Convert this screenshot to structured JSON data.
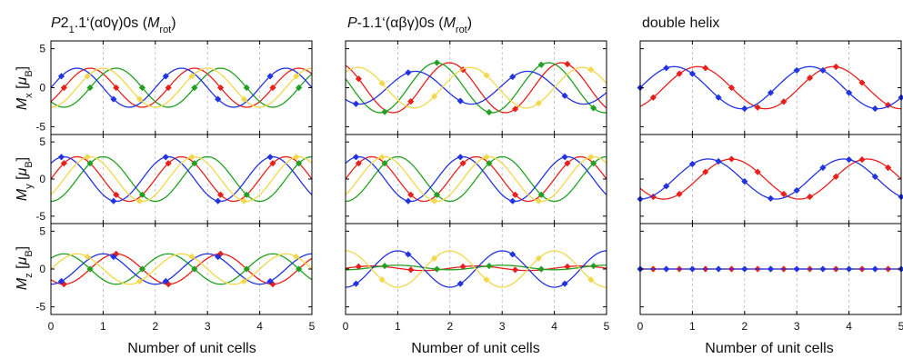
{
  "chart_data": {
    "type": "line",
    "description": "3 x 3 grid of magnetic moment components Mx, My, Mz vs number of unit cells for three structures",
    "colors": {
      "red": "#e8201c",
      "green": "#22a022",
      "blue": "#2233e0",
      "yellow": "#f2d84a"
    },
    "columns": [
      {
        "title_italic": "P",
        "title_main": "2",
        "title_sub": "1",
        "title_rest": ".1‘(α0γ)0s (",
        "title_mrot": "M",
        "title_rot_sub": "rot",
        "title_close": ")"
      },
      {
        "title_italic": "P",
        "title_main": "-1.1‘(αβγ)0s (",
        "title_sub": "",
        "title_rest": "",
        "title_mrot": "M",
        "title_rot_sub": "rot",
        "title_close": ")"
      },
      {
        "title_italic": "",
        "title_main": "double helix",
        "title_sub": "",
        "title_rest": "",
        "title_mrot": "",
        "title_rot_sub": "",
        "title_close": ""
      }
    ],
    "row_labels": [
      {
        "m": "M",
        "sub": "x",
        "unit_open": " [",
        "mu": "μ",
        "unit_sub": "B",
        "unit_close": "]"
      },
      {
        "m": "M",
        "sub": "y",
        "unit_open": " [",
        "mu": "μ",
        "unit_sub": "B",
        "unit_close": "]"
      },
      {
        "m": "M",
        "sub": "z",
        "unit_open": " [",
        "mu": "μ",
        "unit_sub": "B",
        "unit_close": "]"
      }
    ],
    "xlabel": "Number of unit cells",
    "xlim": [
      0,
      5
    ],
    "ylim": [
      -6,
      6
    ],
    "x_ticks": [
      0,
      1,
      2,
      3,
      4,
      5
    ],
    "y_ticks": [
      5,
      0,
      -5
    ],
    "x_tick_labels": [
      "0",
      "1",
      "2",
      "3",
      "4",
      "5"
    ],
    "y_tick_labels": [
      "5",
      "0",
      "-5"
    ],
    "grid": "vertical dashed at integer x",
    "panels": [
      [
        {
          "series": [
            {
              "color": "red",
              "amp": 2.5,
              "period": 2,
              "phase": 0.25,
              "offset": 0,
              "marker_x0": 0.25,
              "marker_step": 1
            },
            {
              "color": "green",
              "amp": 2.5,
              "period": 2,
              "phase": 0.75,
              "offset": 0,
              "marker_x0": 0.75,
              "marker_step": 1
            },
            {
              "color": "blue",
              "amp": 2.5,
              "period": 2,
              "phase": 0.0,
              "offset": 0,
              "marker_x0": 0.2,
              "marker_step": 1
            },
            {
              "color": "yellow",
              "amp": 2.5,
              "period": 2,
              "phase": 0.5,
              "offset": 0,
              "marker_x0": 0.7,
              "marker_step": 1
            }
          ]
        },
        {
          "series": [
            {
              "color": "red",
              "amp": 3,
              "period": 2,
              "phase": 0.0,
              "offset": 0,
              "marker_x0": 0.25,
              "marker_step": 1
            },
            {
              "color": "green",
              "amp": 3,
              "period": 2,
              "phase": 0.5,
              "offset": 0,
              "marker_x0": 0.75,
              "marker_step": 1
            },
            {
              "color": "blue",
              "amp": 3,
              "period": 2,
              "phase": -0.25,
              "offset": 0,
              "marker_x0": 0.2,
              "marker_step": 1
            },
            {
              "color": "yellow",
              "amp": 3,
              "period": 2,
              "phase": 0.25,
              "offset": 0,
              "marker_x0": 0.7,
              "marker_step": 1
            }
          ]
        },
        {
          "series": [
            {
              "color": "red",
              "amp": 2,
              "period": 2,
              "phase": 0.75,
              "offset": 0,
              "marker_x0": 0.25,
              "marker_step": 1
            },
            {
              "color": "green",
              "amp": 2,
              "period": 2,
              "phase": -0.25,
              "offset": 0,
              "marker_x0": 0.75,
              "marker_step": 1
            },
            {
              "color": "blue",
              "amp": 2,
              "period": 2,
              "phase": 0.5,
              "offset": 0,
              "marker_x0": 0.2,
              "marker_step": 1
            },
            {
              "color": "yellow",
              "amp": 2,
              "period": 2,
              "phase": 0.0,
              "offset": 0,
              "marker_x0": 0.7,
              "marker_step": 1
            }
          ]
        }
      ],
      [
        {
          "series": [
            {
              "color": "red",
              "amp": 3.2,
              "period": 2.15,
              "phase": -0.7,
              "offset": 0,
              "marker_x0": 0.25,
              "marker_step": 1
            },
            {
              "color": "green",
              "amp": 3.2,
              "period": 2.15,
              "phase": -0.95,
              "offset": 0,
              "marker_x0": 0.75,
              "marker_step": 1
            },
            {
              "color": "blue",
              "amp": 2.1,
              "period": 2.15,
              "phase": -1.35,
              "offset": 0,
              "marker_x0": 0.2,
              "marker_step": 1
            },
            {
              "color": "yellow",
              "amp": 2.6,
              "period": 2.15,
              "phase": -0.3,
              "offset": 0,
              "marker_x0": 0.7,
              "marker_step": 1
            }
          ]
        },
        {
          "series": [
            {
              "color": "red",
              "amp": 3,
              "period": 2,
              "phase": 0.0,
              "offset": 0,
              "marker_x0": 0.25,
              "marker_step": 1
            },
            {
              "color": "green",
              "amp": 3,
              "period": 2,
              "phase": 0.5,
              "offset": 0,
              "marker_x0": 0.75,
              "marker_step": 1
            },
            {
              "color": "blue",
              "amp": 3,
              "period": 2,
              "phase": -0.25,
              "offset": 0,
              "marker_x0": 0.2,
              "marker_step": 1
            },
            {
              "color": "yellow",
              "amp": 3,
              "period": 2,
              "phase": 0.25,
              "offset": 0,
              "marker_x0": 0.7,
              "marker_step": 1
            }
          ]
        },
        {
          "series": [
            {
              "color": "red",
              "amp": 0.3,
              "period": 2,
              "phase": 0.0,
              "offset": 0.1,
              "marker_x0": 0.25,
              "marker_step": 1
            },
            {
              "color": "green",
              "amp": 0.3,
              "period": 2,
              "phase": 0.5,
              "offset": 0.2,
              "marker_x0": 0.75,
              "marker_step": 1
            },
            {
              "color": "blue",
              "amp": 2.4,
              "period": 2,
              "phase": 0.5,
              "offset": 0,
              "marker_x0": 0.2,
              "marker_step": 1
            },
            {
              "color": "yellow",
              "amp": 2.4,
              "period": 2,
              "phase": -0.5,
              "offset": 0,
              "marker_x0": 0.7,
              "marker_step": 1
            }
          ]
        }
      ],
      [
        {
          "series": [
            {
              "color": "red",
              "amp": 2.7,
              "period": 2.6,
              "phase": 0.45,
              "offset": 0,
              "marker_x0": 0.25,
              "marker_step": 0.5
            },
            {
              "color": "blue",
              "amp": 2.7,
              "period": 2.6,
              "phase": 0.0,
              "offset": 0,
              "marker_x0": 0.0,
              "marker_step": 0.5
            }
          ]
        },
        {
          "series": [
            {
              "color": "red",
              "amp": 2.7,
              "period": 2.6,
              "phase": 1.1,
              "offset": 0,
              "marker_x0": 0.25,
              "marker_step": 0.5
            },
            {
              "color": "blue",
              "amp": 2.7,
              "period": 2.6,
              "phase": 0.65,
              "offset": 0,
              "marker_x0": 0.0,
              "marker_step": 0.5
            }
          ]
        },
        {
          "series": [
            {
              "color": "red",
              "amp": 0,
              "period": 2,
              "phase": 0,
              "offset": 0,
              "marker_x0": 0.25,
              "marker_step": 0.5
            },
            {
              "color": "blue",
              "amp": 0,
              "period": 2,
              "phase": 0,
              "offset": 0,
              "marker_x0": 0.0,
              "marker_step": 0.5
            }
          ]
        }
      ]
    ]
  }
}
